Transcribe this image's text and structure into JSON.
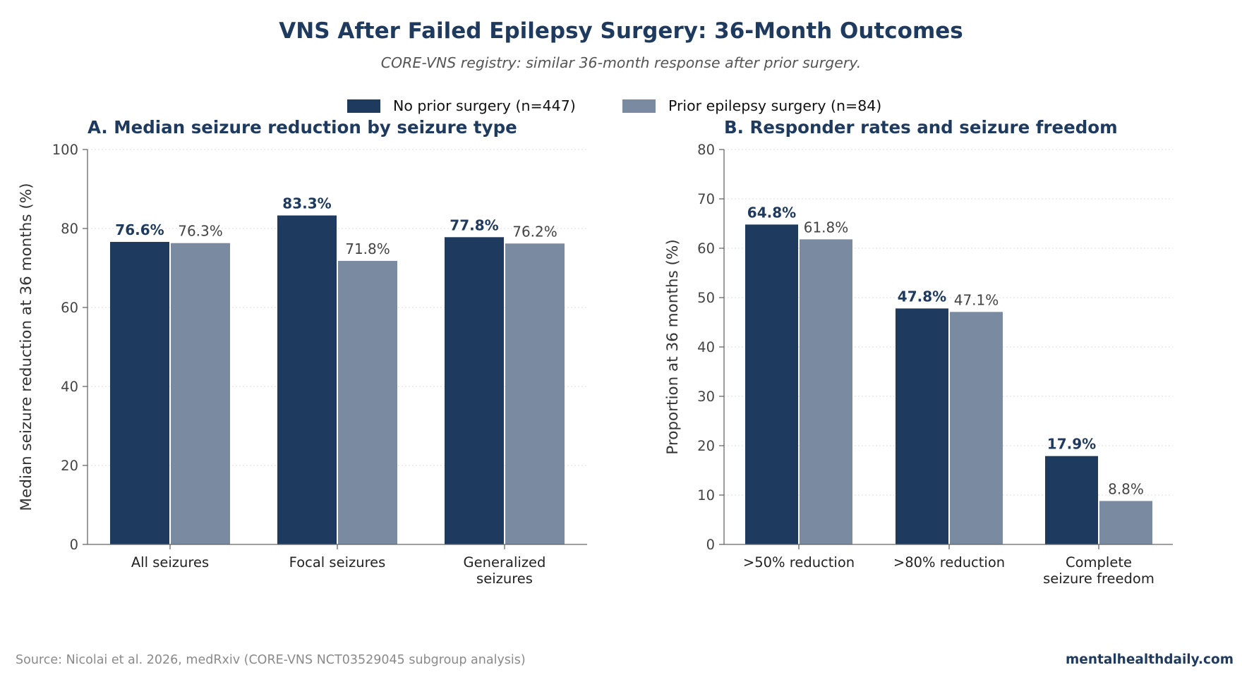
{
  "title": "VNS After Failed Epilepsy Surgery: 36-Month Outcomes",
  "subtitle": "CORE-VNS registry: similar 36-month response after prior surgery.",
  "legend": [
    {
      "label": "No prior surgery (n=447)",
      "color": "#1f3a5f"
    },
    {
      "label": "Prior epilepsy surgery (n=84)",
      "color": "#7a8aa1"
    }
  ],
  "footer": {
    "source": "Source: Nicolai et al. 2026, medRxiv (CORE-VNS NCT03529045 subgroup analysis)",
    "brand": "mentalhealthdaily.com"
  },
  "colors": {
    "title": "#1f3a5f",
    "series_no_prior": "#1f3a5f",
    "series_prior": "#7a8aa1",
    "grid": "#dddddd",
    "axis": "#666666"
  },
  "chart_data": [
    {
      "type": "bar",
      "title": "A. Median seizure reduction by seizure type",
      "ylabel": "Median seizure reduction at 36 months (%)",
      "xlabel": "",
      "ylim": [
        0,
        100
      ],
      "yticks": [
        0,
        20,
        40,
        60,
        80,
        100
      ],
      "grid": true,
      "categories": [
        "All seizures",
        "Focal seizures",
        "Generalized seizures"
      ],
      "category_labels": [
        [
          "All seizures"
        ],
        [
          "Focal seizures"
        ],
        [
          "Generalized",
          "seizures"
        ]
      ],
      "series": [
        {
          "name": "No prior surgery (n=447)",
          "values": [
            76.6,
            83.3,
            77.8
          ],
          "labels": [
            "76.6%",
            "83.3%",
            "77.8%"
          ]
        },
        {
          "name": "Prior epilepsy surgery (n=84)",
          "values": [
            76.3,
            71.8,
            76.2
          ],
          "labels": [
            "76.3%",
            "71.8%",
            "76.2%"
          ]
        }
      ]
    },
    {
      "type": "bar",
      "title": "B. Responder rates and seizure freedom",
      "ylabel": "Proportion at 36 months (%)",
      "xlabel": "",
      "ylim": [
        0,
        80
      ],
      "yticks": [
        0,
        10,
        20,
        30,
        40,
        50,
        60,
        70,
        80
      ],
      "grid": true,
      "categories": [
        ">50% reduction",
        ">80% reduction",
        "Complete seizure freedom"
      ],
      "category_labels": [
        [
          ">50% reduction"
        ],
        [
          ">80% reduction"
        ],
        [
          "Complete",
          "seizure freedom"
        ]
      ],
      "series": [
        {
          "name": "No prior surgery (n=447)",
          "values": [
            64.8,
            47.8,
            17.9
          ],
          "labels": [
            "64.8%",
            "47.8%",
            "17.9%"
          ]
        },
        {
          "name": "Prior epilepsy surgery (n=84)",
          "values": [
            61.8,
            47.1,
            8.8
          ],
          "labels": [
            "61.8%",
            "47.1%",
            "8.8%"
          ]
        }
      ]
    }
  ]
}
